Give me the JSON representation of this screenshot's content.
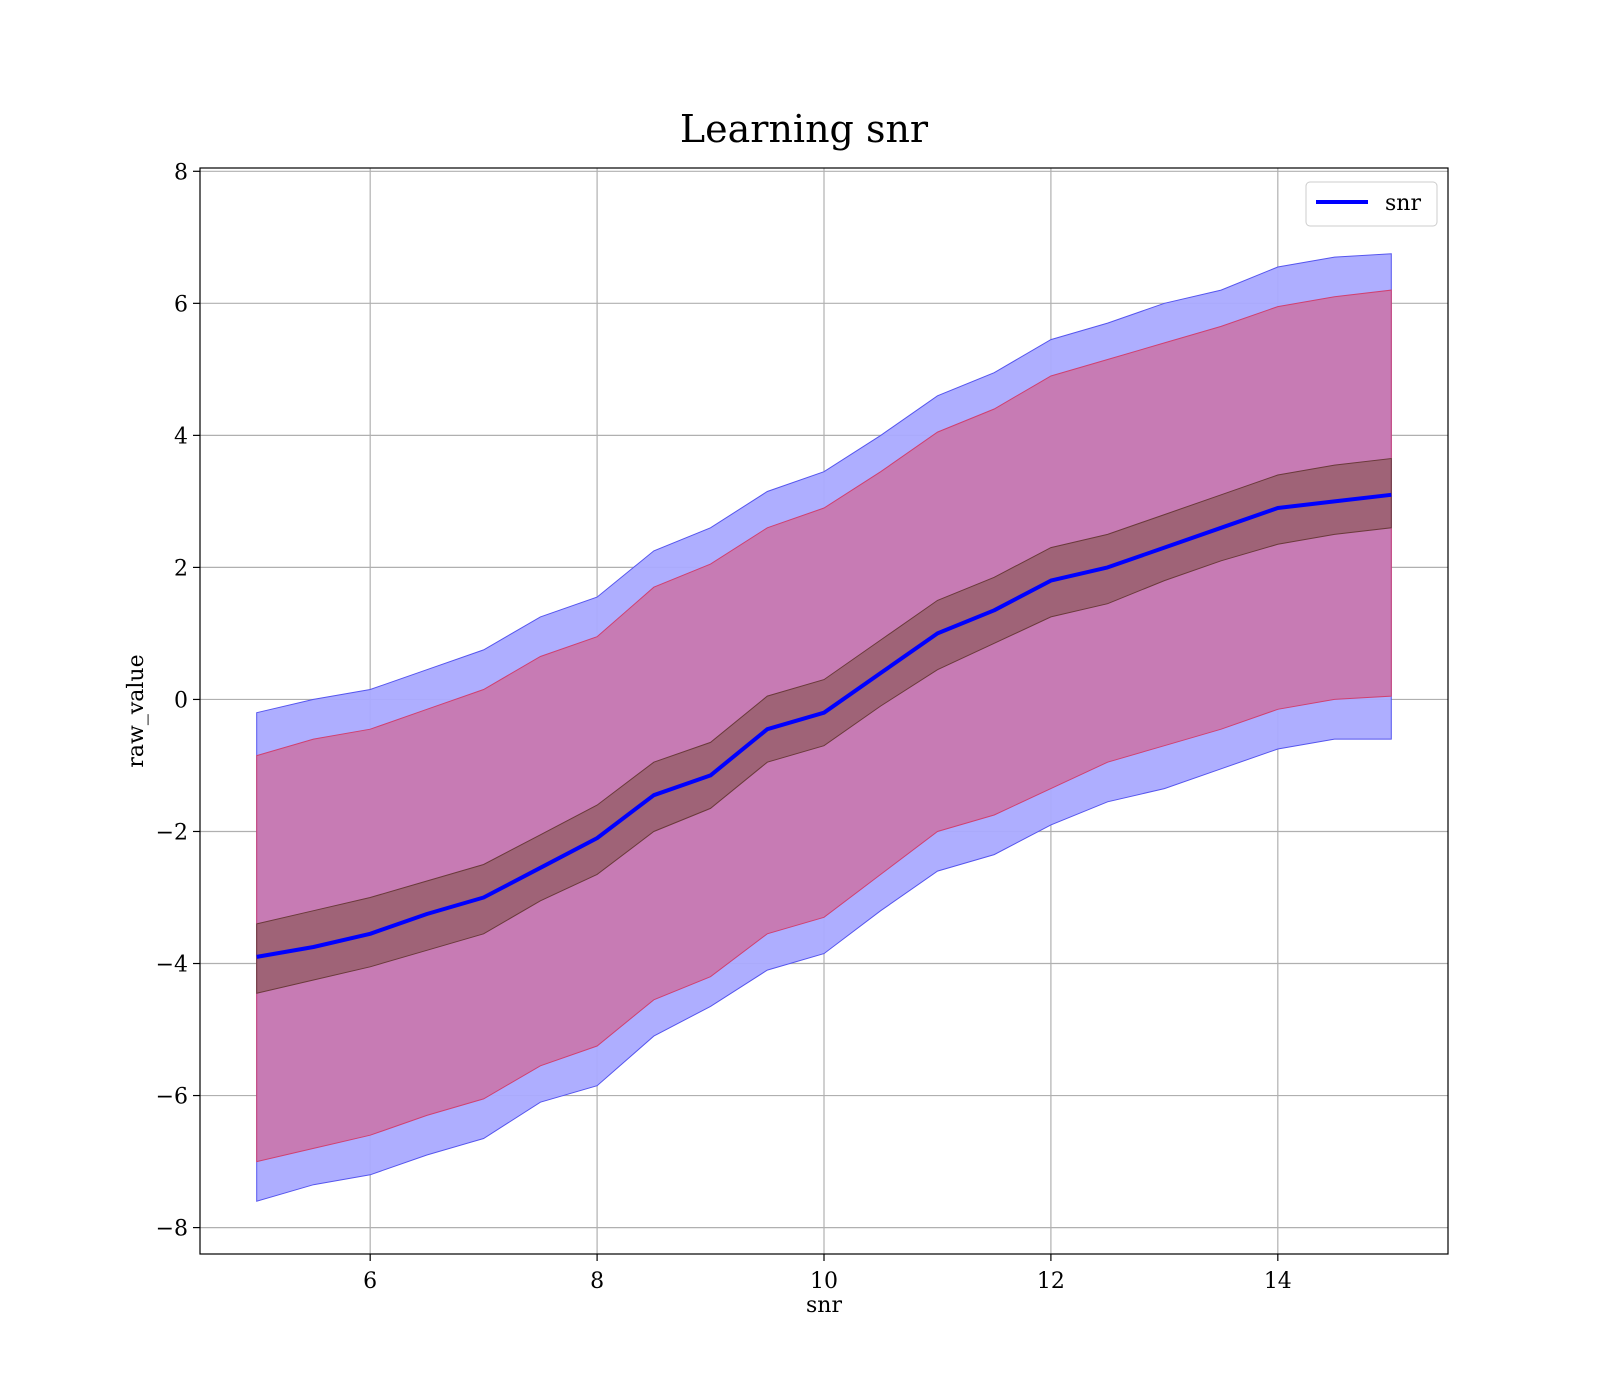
{
  "chart_data": {
    "type": "line",
    "title": "Learning snr",
    "xlabel": "snr",
    "ylabel": "raw_value",
    "xlim": [
      4.5,
      15.5
    ],
    "ylim": [
      -8.4,
      8.05
    ],
    "xticks": [
      6,
      8,
      10,
      12,
      14
    ],
    "yticks": [
      -8,
      -6,
      -4,
      -2,
      0,
      2,
      4,
      6,
      8
    ],
    "xtick_labels": [
      "6",
      "8",
      "10",
      "12",
      "14"
    ],
    "ytick_labels": [
      "−8",
      "−6",
      "−4",
      "−2",
      "0",
      "2",
      "4",
      "6",
      "8"
    ],
    "grid": true,
    "legend": {
      "position": "top-right",
      "entries": [
        "snr"
      ]
    },
    "colors": {
      "line": "#0000ff",
      "outer_band": "#aaaaff",
      "outer_band_edge": "#5555ee",
      "middle_band": "#c878b0",
      "middle_band_edge": "#d04070",
      "inner_band": "#9a6070",
      "inner_band_edge": "#6a3a3a",
      "grid": "#b0b0b0"
    },
    "series": [
      {
        "name": "snr",
        "x": [
          5.0,
          5.5,
          6.0,
          6.5,
          7.0,
          7.5,
          8.0,
          8.5,
          9.0,
          9.5,
          10.0,
          10.5,
          11.0,
          11.5,
          12.0,
          12.5,
          13.0,
          13.5,
          14.0,
          14.5,
          15.0
        ],
        "y": [
          -3.9,
          -3.75,
          -3.55,
          -3.25,
          -3.0,
          -2.55,
          -2.1,
          -1.45,
          -1.15,
          -0.45,
          -0.2,
          0.4,
          1.0,
          1.35,
          1.8,
          2.0,
          2.3,
          2.6,
          2.9,
          3.0,
          3.1
        ]
      }
    ],
    "bands": [
      {
        "role": "outer",
        "x": [
          5.0,
          5.5,
          6.0,
          6.5,
          7.0,
          7.5,
          8.0,
          8.5,
          9.0,
          9.5,
          10.0,
          10.5,
          11.0,
          11.5,
          12.0,
          12.5,
          13.0,
          13.5,
          14.0,
          14.5,
          15.0
        ],
        "lower": [
          -7.6,
          -7.35,
          -7.2,
          -6.9,
          -6.65,
          -6.1,
          -5.85,
          -5.1,
          -4.65,
          -4.1,
          -3.85,
          -3.2,
          -2.6,
          -2.35,
          -1.9,
          -1.55,
          -1.35,
          -1.05,
          -0.75,
          -0.6,
          -0.6
        ],
        "upper": [
          -0.2,
          0.0,
          0.15,
          0.45,
          0.75,
          1.25,
          1.55,
          2.25,
          2.6,
          3.15,
          3.45,
          4.0,
          4.6,
          4.95,
          5.45,
          5.7,
          6.0,
          6.2,
          6.55,
          6.7,
          6.75
        ]
      },
      {
        "role": "middle",
        "x": [
          5.0,
          5.5,
          6.0,
          6.5,
          7.0,
          7.5,
          8.0,
          8.5,
          9.0,
          9.5,
          10.0,
          10.5,
          11.0,
          11.5,
          12.0,
          12.5,
          13.0,
          13.5,
          14.0,
          14.5,
          15.0
        ],
        "lower": [
          -7.0,
          -6.8,
          -6.6,
          -6.3,
          -6.05,
          -5.55,
          -5.25,
          -4.55,
          -4.2,
          -3.55,
          -3.3,
          -2.65,
          -2.0,
          -1.75,
          -1.35,
          -0.95,
          -0.7,
          -0.45,
          -0.15,
          0.0,
          0.05
        ],
        "upper": [
          -0.85,
          -0.6,
          -0.45,
          -0.15,
          0.15,
          0.65,
          0.95,
          1.7,
          2.05,
          2.6,
          2.9,
          3.45,
          4.05,
          4.4,
          4.9,
          5.15,
          5.4,
          5.65,
          5.95,
          6.1,
          6.2
        ]
      },
      {
        "role": "inner",
        "x": [
          5.0,
          5.5,
          6.0,
          6.5,
          7.0,
          7.5,
          8.0,
          8.5,
          9.0,
          9.5,
          10.0,
          10.5,
          11.0,
          11.5,
          12.0,
          12.5,
          13.0,
          13.5,
          14.0,
          14.5,
          15.0
        ],
        "lower": [
          -4.45,
          -4.25,
          -4.05,
          -3.8,
          -3.55,
          -3.05,
          -2.65,
          -2.0,
          -1.65,
          -0.95,
          -0.7,
          -0.1,
          0.45,
          0.85,
          1.25,
          1.45,
          1.8,
          2.1,
          2.35,
          2.5,
          2.6
        ],
        "upper": [
          -3.4,
          -3.2,
          -3.0,
          -2.75,
          -2.5,
          -2.05,
          -1.6,
          -0.95,
          -0.65,
          0.05,
          0.3,
          0.9,
          1.5,
          1.85,
          2.3,
          2.5,
          2.8,
          3.1,
          3.4,
          3.55,
          3.65
        ]
      }
    ]
  }
}
